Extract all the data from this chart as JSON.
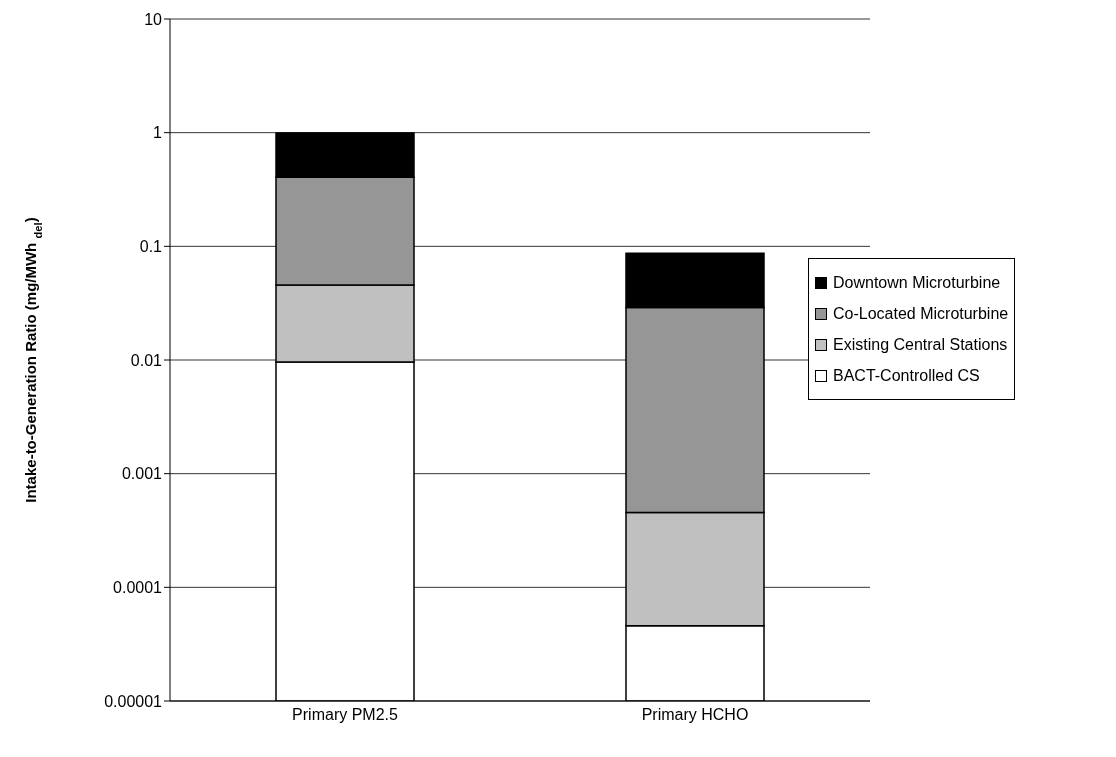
{
  "chart_data": {
    "type": "bar",
    "stacked": true,
    "log": true,
    "ylabel": "Intake-to-Generation Ratio (mg/MWh $_{del}$)",
    "categories": [
      "Primary PM2.5",
      "Primary HCHO"
    ],
    "series": [
      {
        "name": "BACT-Controlled CS",
        "color": "#ffffff",
        "values": [
          0.0096,
          4.6e-05
        ]
      },
      {
        "name": "Existing Central Stations",
        "color": "#c0c0c0",
        "values": [
          0.036,
          0.00041
        ]
      },
      {
        "name": "Co-Located Microturbine",
        "color": "#969696",
        "values": [
          0.36,
          0.0285
        ]
      },
      {
        "name": "Downtown Microturbine",
        "color": "#000000",
        "values": [
          0.59,
          0.058
        ]
      }
    ],
    "ylim": [
      1e-05,
      10
    ],
    "yticks": [
      {
        "value": 1e-05,
        "label": "0.00001"
      },
      0.0001,
      0.001,
      0.01,
      0.1,
      1,
      10
    ],
    "grid": "y",
    "legend": "right"
  }
}
